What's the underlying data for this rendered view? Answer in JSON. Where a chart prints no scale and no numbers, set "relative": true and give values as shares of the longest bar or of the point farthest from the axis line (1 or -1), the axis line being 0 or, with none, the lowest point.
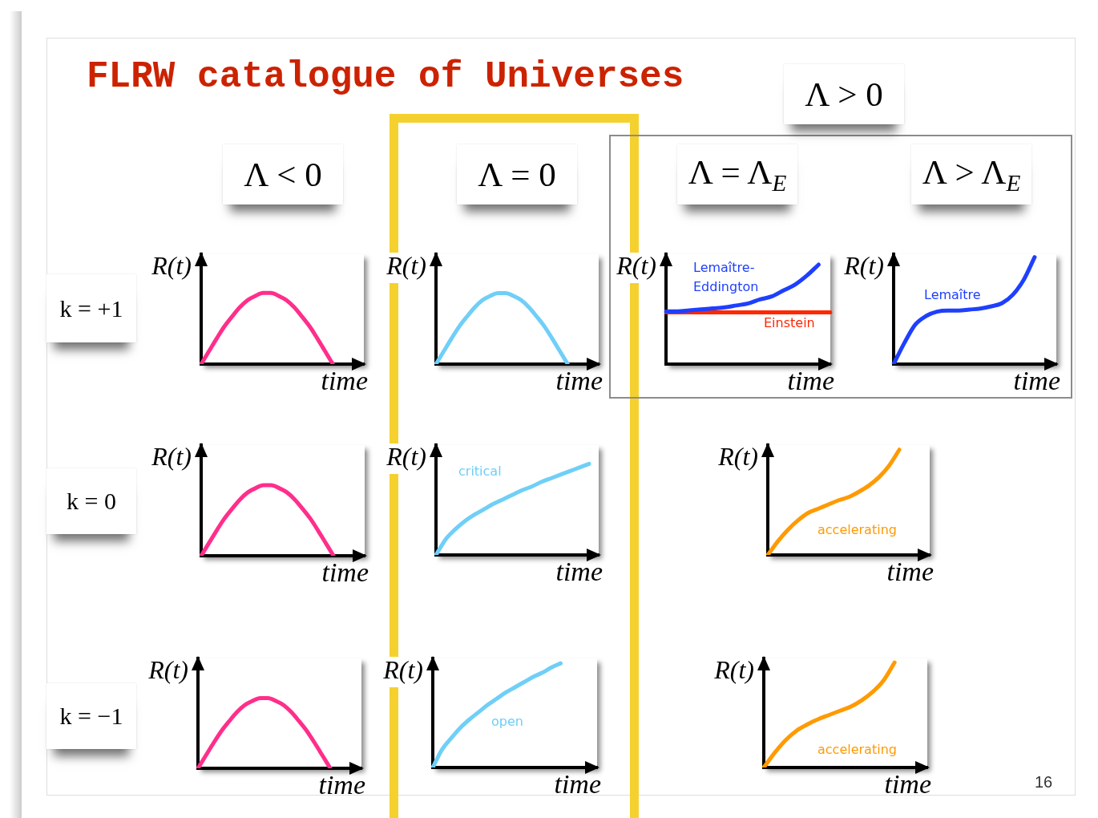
{
  "chart_data": [
    {
      "type": "other",
      "title": "FLRW catalogue of Universes",
      "annotations": [
        "Λ > 0",
        "Λ < 0",
        "Λ = 0",
        "Λ = Λ$_{E}$",
        "Λ > Λ$_{E}$",
        "k = +1",
        "k = 0",
        "k = −1",
        "16"
      ]
    },
    {
      "type": "line",
      "relative": true,
      "tick_labels": false,
      "xlabel": "time",
      "ylabel": "R(t)",
      "categories": [
        null,
        null,
        null,
        null,
        null,
        null,
        null,
        null,
        null,
        null,
        null,
        null,
        null,
        null,
        null,
        null,
        null,
        null,
        null,
        null,
        null,
        null
      ],
      "series": [
        {
          "color": "#ff2e8b",
          "values": [
            0,
            0.18,
            0.36,
            0.53,
            0.67,
            0.8,
            0.9,
            0.96,
            1,
            1,
            0.96,
            0.9,
            0.8,
            0.67,
            0.53,
            0.36,
            0.18,
            0,
            null,
            null,
            null,
            null
          ]
        }
      ]
    },
    {
      "type": "line",
      "relative": true,
      "tick_labels": false,
      "xlabel": "time",
      "ylabel": "R(t)",
      "categories": [
        null,
        null,
        null,
        null,
        null,
        null,
        null,
        null,
        null,
        null,
        null,
        null,
        null,
        null,
        null,
        null,
        null,
        null,
        null,
        null,
        null,
        null
      ],
      "series": [
        {
          "color": "#6fcff7",
          "values": [
            0,
            0.18,
            0.36,
            0.53,
            0.67,
            0.8,
            0.9,
            0.96,
            1,
            1,
            0.96,
            0.9,
            0.8,
            0.67,
            0.53,
            0.36,
            0.18,
            0,
            null,
            null,
            null,
            null
          ]
        }
      ]
    },
    {
      "type": "line",
      "relative": true,
      "tick_labels": false,
      "xlabel": "time",
      "ylabel": "R(t)",
      "categories": [
        null,
        null,
        null,
        null,
        null,
        null,
        null,
        null,
        null,
        null,
        null,
        null,
        null,
        null,
        null
      ],
      "series": [
        {
          "name": "Lemaître-Eddington",
          "color": "#1e3fff",
          "values": [
            0.53,
            0.53,
            0.54,
            0.55,
            0.56,
            0.57,
            0.59,
            0.61,
            0.65,
            0.68,
            0.74,
            0.8,
            0.89,
            1,
            null
          ]
        },
        {
          "name": "Einstein",
          "color": "#ff2600",
          "values": [
            0.52,
            0.52,
            0.52,
            0.52,
            0.52,
            0.52,
            0.52,
            0.52,
            0.52,
            0.52,
            0.52,
            0.52,
            0.52,
            0.52,
            0.52
          ]
        }
      ]
    },
    {
      "type": "line",
      "relative": true,
      "tick_labels": false,
      "xlabel": "time",
      "ylabel": "R(t)",
      "categories": [
        null,
        null,
        null,
        null,
        null,
        null,
        null,
        null,
        null,
        null,
        null,
        null,
        null,
        null,
        null,
        null
      ],
      "series": [
        {
          "name": "Lemaître",
          "color": "#1e3fff",
          "values": [
            0,
            0.2,
            0.37,
            0.45,
            0.49,
            0.5,
            0.5,
            0.51,
            0.52,
            0.54,
            0.57,
            0.65,
            0.79,
            1,
            null,
            null
          ]
        }
      ]
    },
    {
      "type": "line",
      "relative": true,
      "tick_labels": false,
      "xlabel": "time",
      "ylabel": "R(t)",
      "categories": [
        null,
        null,
        null,
        null,
        null,
        null,
        null,
        null,
        null,
        null,
        null,
        null,
        null,
        null,
        null,
        null,
        null,
        null,
        null,
        null,
        null,
        null
      ],
      "series": [
        {
          "color": "#ff2e8b",
          "values": [
            0,
            0.18,
            0.36,
            0.53,
            0.67,
            0.8,
            0.9,
            0.96,
            1,
            1,
            0.96,
            0.9,
            0.8,
            0.67,
            0.53,
            0.36,
            0.18,
            0,
            null,
            null,
            null,
            null
          ]
        }
      ]
    },
    {
      "type": "line",
      "relative": true,
      "tick_labels": false,
      "xlabel": "time",
      "ylabel": "R(t)",
      "categories": [
        null,
        null,
        null,
        null,
        null,
        null,
        null,
        null,
        null,
        null,
        null,
        null,
        null,
        null,
        null,
        null,
        null,
        null
      ],
      "series": [
        {
          "name": "critical",
          "color": "#6fcff7",
          "values": [
            0,
            0.17,
            0.28,
            0.37,
            0.44,
            0.5,
            0.56,
            0.61,
            0.66,
            0.71,
            0.75,
            0.8,
            0.84,
            0.88,
            0.92,
            0.96,
            1,
            null
          ]
        }
      ]
    },
    {
      "type": "line",
      "relative": true,
      "tick_labels": false,
      "xlabel": "time",
      "ylabel": "R(t)",
      "categories": [
        null,
        null,
        null,
        null,
        null,
        null,
        null,
        null,
        null,
        null,
        null,
        null,
        null,
        null,
        null,
        null,
        null
      ],
      "series": [
        {
          "name": "accelerating",
          "color": "#ff9a00",
          "values": [
            0,
            0.13,
            0.24,
            0.33,
            0.4,
            0.44,
            0.48,
            0.52,
            0.55,
            0.6,
            0.66,
            0.74,
            0.85,
            1,
            null,
            null,
            null
          ]
        }
      ]
    },
    {
      "type": "line",
      "relative": true,
      "tick_labels": false,
      "xlabel": "time",
      "ylabel": "R(t)",
      "categories": [
        null,
        null,
        null,
        null,
        null,
        null,
        null,
        null,
        null,
        null,
        null,
        null,
        null,
        null,
        null,
        null,
        null,
        null,
        null,
        null,
        null,
        null
      ],
      "series": [
        {
          "color": "#ff2e8b",
          "values": [
            0,
            0.18,
            0.36,
            0.53,
            0.67,
            0.8,
            0.9,
            0.96,
            1,
            1,
            0.96,
            0.9,
            0.8,
            0.67,
            0.53,
            0.36,
            0.18,
            0,
            null,
            null,
            null,
            null
          ]
        }
      ]
    },
    {
      "type": "line",
      "relative": true,
      "tick_labels": false,
      "xlabel": "time",
      "ylabel": "R(t)",
      "categories": [
        null,
        null,
        null,
        null,
        null,
        null,
        null,
        null,
        null,
        null,
        null,
        null,
        null,
        null,
        null,
        null,
        null,
        null,
        null
      ],
      "series": [
        {
          "name": "open",
          "color": "#6fcff7",
          "values": [
            0,
            0.17,
            0.28,
            0.38,
            0.46,
            0.53,
            0.6,
            0.66,
            0.72,
            0.77,
            0.82,
            0.87,
            0.91,
            0.96,
            1,
            null,
            null,
            null,
            null
          ]
        }
      ]
    },
    {
      "type": "line",
      "relative": true,
      "tick_labels": false,
      "xlabel": "time",
      "ylabel": "R(t)",
      "categories": [
        null,
        null,
        null,
        null,
        null,
        null,
        null,
        null,
        null,
        null,
        null,
        null,
        null,
        null,
        null,
        null
      ],
      "series": [
        {
          "name": "accelerating",
          "color": "#ff9a00",
          "values": [
            0,
            0.14,
            0.26,
            0.35,
            0.41,
            0.46,
            0.5,
            0.54,
            0.58,
            0.64,
            0.72,
            0.83,
            1,
            null,
            null,
            null
          ]
        }
      ]
    }
  ]
}
